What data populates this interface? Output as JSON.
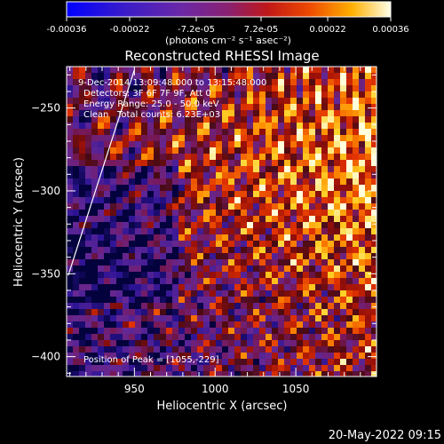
{
  "colorbar": {
    "tick_labels": [
      "-0.00036",
      "-0.00022",
      "-7.2e-05",
      "7.2e-05",
      "0.00022",
      "0.00036"
    ],
    "unit_label": "(photons cm⁻² s⁻¹ asec⁻²)",
    "range": [
      -0.00036,
      0.00036
    ]
  },
  "chart_data": {
    "type": "heatmap",
    "title": "Reconstructed RHESSI Image",
    "xlabel": "Heliocentric X (arcsec)",
    "ylabel": "Heliocentric Y (arcsec)",
    "xlim": [
      908,
      1100
    ],
    "ylim": [
      -412,
      -225
    ],
    "x_ticks": [
      950,
      1000,
      1050
    ],
    "x_tick_labels": [
      "950",
      "1000",
      "1050"
    ],
    "y_ticks": [
      -250,
      -300,
      -350,
      -400
    ],
    "y_tick_labels": [
      "−250",
      "−300",
      "−350",
      "−400"
    ],
    "info": {
      "time_range": "9-Dec-2014 13:09:48.000 to 13:15:48.000",
      "detectors": "Detectors: 3F 6F 7F 9F, Att 0",
      "energy": "Energy Range: 25.0 - 50.0 keV",
      "method": "Clean   Total counts: 6.23E+03"
    },
    "peak_label": "Position of Peak = [1055,-229]",
    "peak": [
      1055,
      -229
    ],
    "limb_line": [
      [
        909,
        -351
      ],
      [
        950,
        -227
      ]
    ],
    "colormap": "rhessi-red-yellow",
    "grid": false
  },
  "footer": {
    "timestamp": "20-May-2022 09:15"
  }
}
